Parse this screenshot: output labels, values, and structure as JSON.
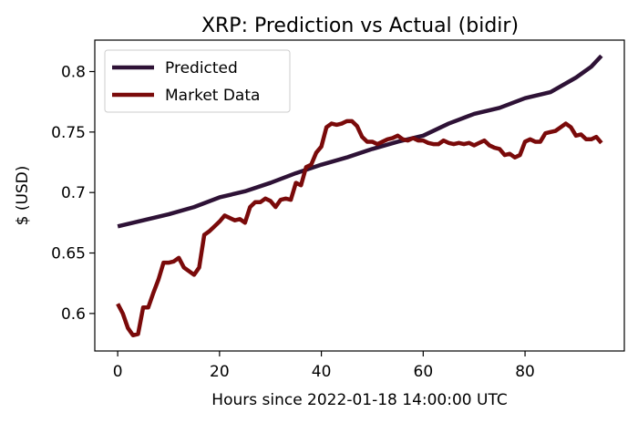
{
  "chart_data": {
    "type": "line",
    "title": "XRP: Prediction vs Actual (bidir)",
    "xlabel": "Hours since 2022-01-18 14:00:00 UTC",
    "ylabel": "$ (USD)",
    "xlim": [
      -4.5,
      99.5
    ],
    "ylim": [
      0.569,
      0.826
    ],
    "xticks": [
      0,
      20,
      40,
      60,
      80
    ],
    "yticks": [
      0.6,
      0.65,
      0.7,
      0.75,
      0.8
    ],
    "ytick_labels": [
      "0.6",
      "0.65",
      "0.7",
      "0.75",
      "0.8"
    ],
    "grid": false,
    "legend_position": "upper-left",
    "series": [
      {
        "name": "Predicted",
        "color": "#2e1236",
        "points": [
          [
            0,
            0.672
          ],
          [
            5,
            0.677
          ],
          [
            10,
            0.682
          ],
          [
            15,
            0.688
          ],
          [
            20,
            0.696
          ],
          [
            25,
            0.701
          ],
          [
            30,
            0.708
          ],
          [
            35,
            0.716
          ],
          [
            40,
            0.723
          ],
          [
            45,
            0.729
          ],
          [
            50,
            0.736
          ],
          [
            55,
            0.742
          ],
          [
            60,
            0.747
          ],
          [
            65,
            0.757
          ],
          [
            70,
            0.765
          ],
          [
            75,
            0.77
          ],
          [
            80,
            0.778
          ],
          [
            85,
            0.783
          ],
          [
            90,
            0.795
          ],
          [
            93,
            0.804
          ],
          [
            95,
            0.813
          ]
        ]
      },
      {
        "name": "Market Data",
        "color": "#7a0a0a",
        "points": [
          [
            0,
            0.608
          ],
          [
            1,
            0.6
          ],
          [
            2,
            0.588
          ],
          [
            3,
            0.582
          ],
          [
            4,
            0.583
          ],
          [
            5,
            0.605
          ],
          [
            6,
            0.605
          ],
          [
            7,
            0.617
          ],
          [
            8,
            0.628
          ],
          [
            9,
            0.642
          ],
          [
            10,
            0.642
          ],
          [
            11,
            0.643
          ],
          [
            12,
            0.646
          ],
          [
            13,
            0.638
          ],
          [
            14,
            0.635
          ],
          [
            15,
            0.632
          ],
          [
            16,
            0.638
          ],
          [
            17,
            0.665
          ],
          [
            18,
            0.668
          ],
          [
            19,
            0.672
          ],
          [
            20,
            0.676
          ],
          [
            21,
            0.681
          ],
          [
            22,
            0.679
          ],
          [
            23,
            0.677
          ],
          [
            24,
            0.678
          ],
          [
            25,
            0.675
          ],
          [
            26,
            0.688
          ],
          [
            27,
            0.692
          ],
          [
            28,
            0.692
          ],
          [
            29,
            0.695
          ],
          [
            30,
            0.693
          ],
          [
            31,
            0.688
          ],
          [
            32,
            0.694
          ],
          [
            33,
            0.695
          ],
          [
            34,
            0.694
          ],
          [
            35,
            0.708
          ],
          [
            36,
            0.706
          ],
          [
            37,
            0.721
          ],
          [
            38,
            0.723
          ],
          [
            39,
            0.733
          ],
          [
            40,
            0.738
          ],
          [
            41,
            0.754
          ],
          [
            42,
            0.757
          ],
          [
            43,
            0.756
          ],
          [
            44,
            0.757
          ],
          [
            45,
            0.759
          ],
          [
            46,
            0.759
          ],
          [
            47,
            0.755
          ],
          [
            48,
            0.746
          ],
          [
            49,
            0.742
          ],
          [
            50,
            0.742
          ],
          [
            51,
            0.74
          ],
          [
            52,
            0.742
          ],
          [
            53,
            0.744
          ],
          [
            54,
            0.745
          ],
          [
            55,
            0.747
          ],
          [
            56,
            0.744
          ],
          [
            57,
            0.743
          ],
          [
            58,
            0.745
          ],
          [
            59,
            0.743
          ],
          [
            60,
            0.743
          ],
          [
            61,
            0.741
          ],
          [
            62,
            0.74
          ],
          [
            63,
            0.74
          ],
          [
            64,
            0.743
          ],
          [
            65,
            0.741
          ],
          [
            66,
            0.74
          ],
          [
            67,
            0.741
          ],
          [
            68,
            0.74
          ],
          [
            69,
            0.741
          ],
          [
            70,
            0.739
          ],
          [
            71,
            0.741
          ],
          [
            72,
            0.743
          ],
          [
            73,
            0.739
          ],
          [
            74,
            0.737
          ],
          [
            75,
            0.736
          ],
          [
            76,
            0.731
          ],
          [
            77,
            0.732
          ],
          [
            78,
            0.729
          ],
          [
            79,
            0.731
          ],
          [
            80,
            0.742
          ],
          [
            81,
            0.744
          ],
          [
            82,
            0.742
          ],
          [
            83,
            0.742
          ],
          [
            84,
            0.749
          ],
          [
            85,
            0.75
          ],
          [
            86,
            0.751
          ],
          [
            87,
            0.754
          ],
          [
            88,
            0.757
          ],
          [
            89,
            0.754
          ],
          [
            90,
            0.747
          ],
          [
            91,
            0.748
          ],
          [
            92,
            0.744
          ],
          [
            93,
            0.744
          ],
          [
            94,
            0.746
          ],
          [
            95,
            0.741
          ]
        ]
      }
    ]
  }
}
